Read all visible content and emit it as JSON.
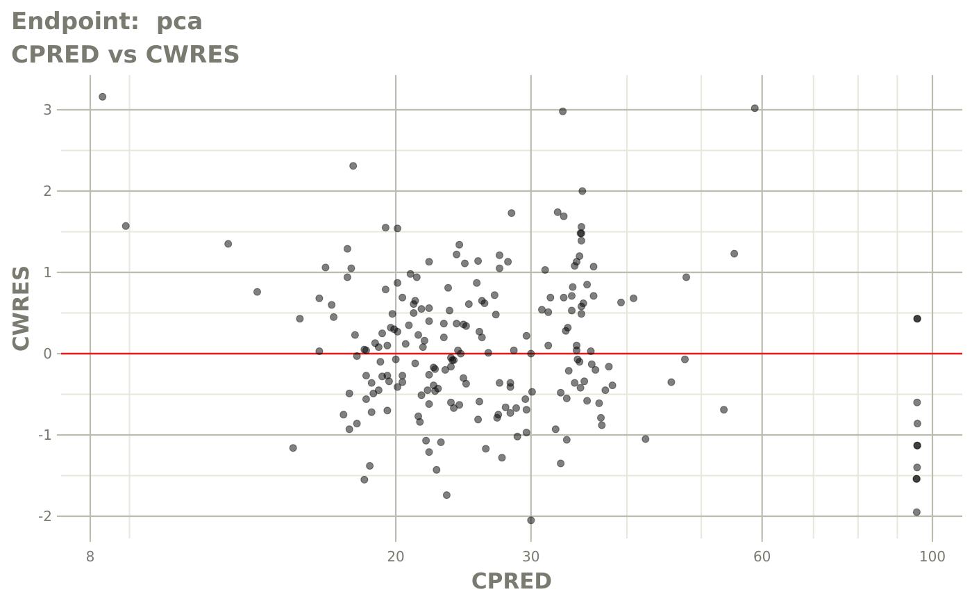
{
  "header": {
    "title_line1": "Endpoint:  pca",
    "title_line2": "CPRED vs CWRES"
  },
  "colors": {
    "background": "#ffffff",
    "grid_major": "#bbbbb0",
    "grid_minor": "#e6e8dc",
    "text": "#7a7a70",
    "reference_line": "#e41a1c",
    "points": "#000000"
  },
  "chart_data": {
    "type": "scatter",
    "title": "Endpoint:  pca",
    "subtitle": "CPRED vs CWRES",
    "xlabel": "CPRED",
    "ylabel": "CWRES",
    "x_scale": "log",
    "xlim": [
      7.2,
      108
    ],
    "ylim": [
      -2.3,
      3.4
    ],
    "x_major_ticks": [
      8,
      20,
      30,
      60,
      100
    ],
    "x_tick_labels": [
      "8",
      "20",
      "30",
      "60",
      "100"
    ],
    "x_minor_ticks": [
      9,
      40,
      50,
      70,
      80,
      90
    ],
    "y_major_ticks": [
      -2,
      -1,
      0,
      1,
      2,
      3
    ],
    "y_tick_labels": [
      "-2",
      "-1",
      "0",
      "1",
      "2",
      "3"
    ],
    "y_minor_ticks": [
      -1.5,
      -0.5,
      0.5,
      1.5,
      2.5
    ],
    "reference_line": {
      "y": 0,
      "color": "#e41a1c"
    },
    "grid": true,
    "point_alpha": 0.5,
    "points": [
      {
        "x": 8.3,
        "y": 3.16
      },
      {
        "x": 8.9,
        "y": 1.57
      },
      {
        "x": 12.1,
        "y": 1.35
      },
      {
        "x": 13.2,
        "y": 0.76
      },
      {
        "x": 14.7,
        "y": -1.16
      },
      {
        "x": 15.0,
        "y": 0.43
      },
      {
        "x": 15.9,
        "y": 0.68
      },
      {
        "x": 15.9,
        "y": 0.03
      },
      {
        "x": 16.2,
        "y": 1.06
      },
      {
        "x": 16.5,
        "y": 0.6
      },
      {
        "x": 16.6,
        "y": 0.45
      },
      {
        "x": 17.1,
        "y": -0.75
      },
      {
        "x": 17.3,
        "y": 1.29
      },
      {
        "x": 17.3,
        "y": 0.94
      },
      {
        "x": 17.4,
        "y": -0.49
      },
      {
        "x": 17.4,
        "y": -0.93
      },
      {
        "x": 17.5,
        "y": 1.05
      },
      {
        "x": 17.6,
        "y": 2.31
      },
      {
        "x": 17.7,
        "y": 0.23
      },
      {
        "x": 17.8,
        "y": -0.03
      },
      {
        "x": 17.8,
        "y": -0.86
      },
      {
        "x": 18.2,
        "y": 0.05
      },
      {
        "x": 18.3,
        "y": 0.04
      },
      {
        "x": 18.3,
        "y": -0.27
      },
      {
        "x": 18.3,
        "y": -0.56
      },
      {
        "x": 18.2,
        "y": -1.55
      },
      {
        "x": 18.5,
        "y": -1.38
      },
      {
        "x": 18.6,
        "y": -0.36
      },
      {
        "x": 18.6,
        "y": -0.72
      },
      {
        "x": 18.7,
        "y": -0.49
      },
      {
        "x": 18.8,
        "y": 0.13
      },
      {
        "x": 19.0,
        "y": 0.08
      },
      {
        "x": 19.0,
        "y": -0.45
      },
      {
        "x": 19.1,
        "y": -0.1
      },
      {
        "x": 19.2,
        "y": 0.25
      },
      {
        "x": 19.2,
        "y": -0.28
      },
      {
        "x": 19.4,
        "y": 1.55
      },
      {
        "x": 19.4,
        "y": 0.79
      },
      {
        "x": 19.5,
        "y": 0.1
      },
      {
        "x": 19.5,
        "y": -0.27
      },
      {
        "x": 19.5,
        "y": -0.7
      },
      {
        "x": 19.6,
        "y": -0.34
      },
      {
        "x": 19.7,
        "y": 0.32
      },
      {
        "x": 19.8,
        "y": 0.49
      },
      {
        "x": 19.9,
        "y": 0.3
      },
      {
        "x": 20.0,
        "y": -0.07
      },
      {
        "x": 20.1,
        "y": 1.54
      },
      {
        "x": 20.1,
        "y": 0.87
      },
      {
        "x": 20.1,
        "y": 0.27
      },
      {
        "x": 20.1,
        "y": -0.41
      },
      {
        "x": 20.4,
        "y": 0.69
      },
      {
        "x": 20.4,
        "y": -0.27
      },
      {
        "x": 20.4,
        "y": -0.35
      },
      {
        "x": 20.6,
        "y": 0.12
      },
      {
        "x": 20.9,
        "y": 0.98
      },
      {
        "x": 20.8,
        "y": 0.35
      },
      {
        "x": 21.1,
        "y": 0.61
      },
      {
        "x": 21.1,
        "y": 0.5
      },
      {
        "x": 21.2,
        "y": 0.65
      },
      {
        "x": 21.2,
        "y": -0.12
      },
      {
        "x": 21.3,
        "y": 0.94
      },
      {
        "x": 21.4,
        "y": 0.23
      },
      {
        "x": 21.4,
        "y": -0.77
      },
      {
        "x": 21.5,
        "y": -0.84
      },
      {
        "x": 21.6,
        "y": 0.55
      },
      {
        "x": 21.6,
        "y": -0.51
      },
      {
        "x": 21.7,
        "y": 0.08
      },
      {
        "x": 21.8,
        "y": 0.16
      },
      {
        "x": 21.9,
        "y": -1.07
      },
      {
        "x": 22.0,
        "y": -0.45
      },
      {
        "x": 22.1,
        "y": 1.13
      },
      {
        "x": 22.1,
        "y": 0.56
      },
      {
        "x": 22.1,
        "y": 0.4
      },
      {
        "x": 22.1,
        "y": -0.26
      },
      {
        "x": 22.1,
        "y": -0.62
      },
      {
        "x": 22.1,
        "y": -1.21
      },
      {
        "x": 22.4,
        "y": -0.17
      },
      {
        "x": 22.4,
        "y": -0.39
      },
      {
        "x": 22.5,
        "y": -0.46
      },
      {
        "x": 22.5,
        "y": -0.19
      },
      {
        "x": 22.6,
        "y": -1.43
      },
      {
        "x": 22.7,
        "y": -0.43
      },
      {
        "x": 22.9,
        "y": -1.09
      },
      {
        "x": 23.1,
        "y": 0.2
      },
      {
        "x": 23.1,
        "y": 0.37
      },
      {
        "x": 23.2,
        "y": -0.2
      },
      {
        "x": 23.3,
        "y": -1.74
      },
      {
        "x": 23.4,
        "y": 0.81
      },
      {
        "x": 23.5,
        "y": 0.53
      },
      {
        "x": 23.6,
        "y": -0.05
      },
      {
        "x": 23.6,
        "y": -0.16
      },
      {
        "x": 23.6,
        "y": -0.6
      },
      {
        "x": 23.7,
        "y": -0.08
      },
      {
        "x": 23.8,
        "y": -0.08
      },
      {
        "x": 23.8,
        "y": -0.67
      },
      {
        "x": 24.0,
        "y": 1.22
      },
      {
        "x": 24.0,
        "y": 0.37
      },
      {
        "x": 24.1,
        "y": 0.04
      },
      {
        "x": 24.2,
        "y": 1.34
      },
      {
        "x": 24.2,
        "y": -0.63
      },
      {
        "x": 24.3,
        "y": 0.0
      },
      {
        "x": 24.5,
        "y": 0.36
      },
      {
        "x": 24.5,
        "y": -0.3
      },
      {
        "x": 24.6,
        "y": 1.11
      },
      {
        "x": 24.7,
        "y": 0.34
      },
      {
        "x": 24.7,
        "y": -0.37
      },
      {
        "x": 24.9,
        "y": 0.61
      },
      {
        "x": 25.5,
        "y": 0.87
      },
      {
        "x": 25.6,
        "y": 1.14
      },
      {
        "x": 25.6,
        "y": -0.81
      },
      {
        "x": 25.7,
        "y": 0.27
      },
      {
        "x": 25.7,
        "y": -0.59
      },
      {
        "x": 25.9,
        "y": 0.65
      },
      {
        "x": 25.9,
        "y": 0.2
      },
      {
        "x": 26.1,
        "y": 0.62
      },
      {
        "x": 26.2,
        "y": -1.17
      },
      {
        "x": 26.4,
        "y": 0.01
      },
      {
        "x": 26.9,
        "y": 0.72
      },
      {
        "x": 27.0,
        "y": 0.48
      },
      {
        "x": 27.1,
        "y": -0.79
      },
      {
        "x": 27.2,
        "y": -0.75
      },
      {
        "x": 27.3,
        "y": 1.21
      },
      {
        "x": 27.3,
        "y": 1.05
      },
      {
        "x": 27.3,
        "y": -0.36
      },
      {
        "x": 27.5,
        "y": -1.28
      },
      {
        "x": 27.8,
        "y": -0.66
      },
      {
        "x": 28.0,
        "y": 1.13
      },
      {
        "x": 28.3,
        "y": 1.73
      },
      {
        "x": 28.2,
        "y": -0.36
      },
      {
        "x": 28.2,
        "y": -0.41
      },
      {
        "x": 28.2,
        "y": -0.73
      },
      {
        "x": 28.5,
        "y": 0.04
      },
      {
        "x": 28.7,
        "y": -0.67
      },
      {
        "x": 28.8,
        "y": -1.02
      },
      {
        "x": 29.5,
        "y": -0.56
      },
      {
        "x": 29.6,
        "y": 0.22
      },
      {
        "x": 29.6,
        "y": -0.69
      },
      {
        "x": 29.6,
        "y": -0.97
      },
      {
        "x": 30.0,
        "y": 0.0
      },
      {
        "x": 30.1,
        "y": -0.47
      },
      {
        "x": 30.0,
        "y": -2.05
      },
      {
        "x": 31.0,
        "y": 0.54
      },
      {
        "x": 31.3,
        "y": 1.03
      },
      {
        "x": 31.6,
        "y": 0.51
      },
      {
        "x": 31.6,
        "y": 0.1
      },
      {
        "x": 31.8,
        "y": 0.69
      },
      {
        "x": 32.3,
        "y": -0.93
      },
      {
        "x": 32.5,
        "y": 1.74
      },
      {
        "x": 32.8,
        "y": -0.48
      },
      {
        "x": 32.8,
        "y": -1.35
      },
      {
        "x": 33.0,
        "y": 2.98
      },
      {
        "x": 33.1,
        "y": 1.69
      },
      {
        "x": 33.1,
        "y": 0.69
      },
      {
        "x": 33.3,
        "y": 0.28
      },
      {
        "x": 33.4,
        "y": -0.55
      },
      {
        "x": 33.4,
        "y": -1.06
      },
      {
        "x": 33.5,
        "y": 0.32
      },
      {
        "x": 33.6,
        "y": -0.21
      },
      {
        "x": 33.9,
        "y": 0.71
      },
      {
        "x": 34.0,
        "y": 0.82
      },
      {
        "x": 33.9,
        "y": 0.53
      },
      {
        "x": 34.2,
        "y": 1.08
      },
      {
        "x": 34.2,
        "y": -0.36
      },
      {
        "x": 34.4,
        "y": 1.13
      },
      {
        "x": 34.4,
        "y": 0.1
      },
      {
        "x": 34.4,
        "y": 0.04
      },
      {
        "x": 34.5,
        "y": -0.07
      },
      {
        "x": 34.7,
        "y": 1.2
      },
      {
        "x": 34.7,
        "y": -0.1
      },
      {
        "x": 34.8,
        "y": 1.48
      },
      {
        "x": 34.9,
        "y": 1.48
      },
      {
        "x": 34.8,
        "y": -0.42
      },
      {
        "x": 35.0,
        "y": 2.0
      },
      {
        "x": 34.9,
        "y": 1.56
      },
      {
        "x": 34.9,
        "y": 1.39
      },
      {
        "x": 34.9,
        "y": 0.58
      },
      {
        "x": 34.9,
        "y": 0.49
      },
      {
        "x": 35.1,
        "y": 0.62
      },
      {
        "x": 35.2,
        "y": -0.34
      },
      {
        "x": 35.5,
        "y": 0.85
      },
      {
        "x": 35.5,
        "y": -0.58
      },
      {
        "x": 35.9,
        "y": 0.03
      },
      {
        "x": 36.0,
        "y": -0.13
      },
      {
        "x": 36.2,
        "y": 1.07
      },
      {
        "x": 36.2,
        "y": 0.71
      },
      {
        "x": 36.4,
        "y": -0.2
      },
      {
        "x": 36.8,
        "y": -0.61
      },
      {
        "x": 37.0,
        "y": -0.79
      },
      {
        "x": 37.1,
        "y": -0.88
      },
      {
        "x": 37.5,
        "y": -0.45
      },
      {
        "x": 37.9,
        "y": -0.16
      },
      {
        "x": 38.3,
        "y": -0.39
      },
      {
        "x": 39.3,
        "y": 0.63
      },
      {
        "x": 40.8,
        "y": 0.68
      },
      {
        "x": 42.3,
        "y": -1.05
      },
      {
        "x": 45.7,
        "y": -0.35
      },
      {
        "x": 47.6,
        "y": -0.07
      },
      {
        "x": 47.8,
        "y": 0.94
      },
      {
        "x": 53.5,
        "y": -0.69
      },
      {
        "x": 55.2,
        "y": 1.23
      },
      {
        "x": 58.7,
        "y": 3.02
      },
      {
        "x": 95.5,
        "y": 0.43
      },
      {
        "x": 95.6,
        "y": 0.43
      },
      {
        "x": 95.5,
        "y": -0.6
      },
      {
        "x": 95.6,
        "y": -0.86
      },
      {
        "x": 95.5,
        "y": -1.13
      },
      {
        "x": 95.6,
        "y": -1.13
      },
      {
        "x": 95.5,
        "y": -1.4
      },
      {
        "x": 95.3,
        "y": -1.54
      },
      {
        "x": 95.4,
        "y": -1.54
      },
      {
        "x": 95.4,
        "y": -1.95
      }
    ]
  }
}
